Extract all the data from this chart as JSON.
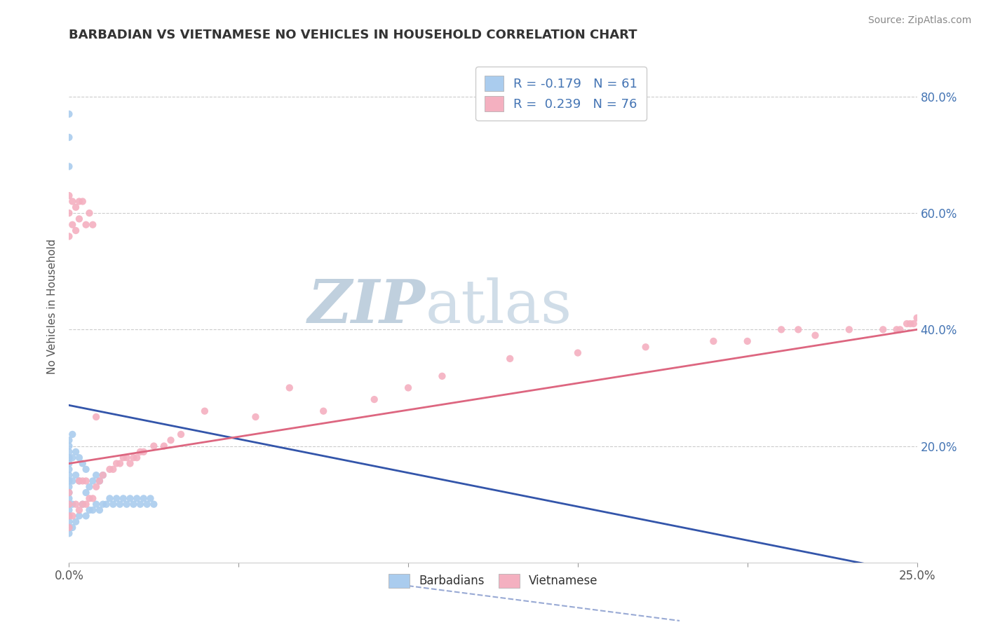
{
  "title": "BARBADIAN VS VIETNAMESE NO VEHICLES IN HOUSEHOLD CORRELATION CHART",
  "source": "Source: ZipAtlas.com",
  "ylabel": "No Vehicles in Household",
  "xlim": [
    0.0,
    0.25
  ],
  "ylim": [
    0.0,
    0.88
  ],
  "xtick_values": [
    0.0,
    0.05,
    0.1,
    0.15,
    0.2,
    0.25
  ],
  "xtick_labels_show": [
    "0.0%",
    "",
    "",
    "",
    "",
    "25.0%"
  ],
  "ytick_values": [
    0.2,
    0.4,
    0.6,
    0.8
  ],
  "ytick_labels": [
    "20.0%",
    "40.0%",
    "60.0%",
    "80.0%"
  ],
  "background_color": "#ffffff",
  "grid_color": "#cccccc",
  "title_color": "#333333",
  "watermark_text1": "ZIP",
  "watermark_text2": "atlas",
  "watermark_color": "#c8d8e8",
  "blue_scatter_color": "#aaccee",
  "pink_scatter_color": "#f4b0c0",
  "blue_line_color": "#3355aa",
  "pink_line_color": "#dd6680",
  "tick_label_color": "#4575b4",
  "blue_points_x": [
    0.0,
    0.0,
    0.0,
    0.0,
    0.0,
    0.0,
    0.0,
    0.0,
    0.0,
    0.0,
    0.0,
    0.0,
    0.0,
    0.0,
    0.0,
    0.0,
    0.0,
    0.0,
    0.0,
    0.0,
    0.001,
    0.001,
    0.001,
    0.001,
    0.001,
    0.002,
    0.002,
    0.002,
    0.003,
    0.003,
    0.003,
    0.004,
    0.004,
    0.005,
    0.005,
    0.005,
    0.006,
    0.006,
    0.007,
    0.007,
    0.008,
    0.008,
    0.009,
    0.009,
    0.01,
    0.01,
    0.011,
    0.012,
    0.013,
    0.014,
    0.015,
    0.016,
    0.017,
    0.018,
    0.019,
    0.02,
    0.021,
    0.022,
    0.023,
    0.024,
    0.025
  ],
  "blue_points_y": [
    0.05,
    0.06,
    0.07,
    0.08,
    0.09,
    0.1,
    0.11,
    0.12,
    0.13,
    0.14,
    0.15,
    0.16,
    0.17,
    0.18,
    0.19,
    0.2,
    0.21,
    0.68,
    0.73,
    0.77,
    0.06,
    0.1,
    0.14,
    0.18,
    0.22,
    0.07,
    0.15,
    0.19,
    0.08,
    0.14,
    0.18,
    0.1,
    0.17,
    0.08,
    0.12,
    0.16,
    0.09,
    0.13,
    0.09,
    0.14,
    0.1,
    0.15,
    0.09,
    0.14,
    0.1,
    0.15,
    0.1,
    0.11,
    0.1,
    0.11,
    0.1,
    0.11,
    0.1,
    0.11,
    0.1,
    0.11,
    0.1,
    0.11,
    0.1,
    0.11,
    0.1
  ],
  "pink_points_x": [
    0.0,
    0.0,
    0.0,
    0.0,
    0.0,
    0.0,
    0.0,
    0.001,
    0.001,
    0.001,
    0.002,
    0.002,
    0.002,
    0.003,
    0.003,
    0.003,
    0.003,
    0.004,
    0.004,
    0.004,
    0.005,
    0.005,
    0.005,
    0.006,
    0.006,
    0.007,
    0.007,
    0.008,
    0.008,
    0.009,
    0.01,
    0.012,
    0.013,
    0.014,
    0.015,
    0.016,
    0.017,
    0.018,
    0.019,
    0.02,
    0.021,
    0.022,
    0.025,
    0.028,
    0.03,
    0.033,
    0.04,
    0.055,
    0.065,
    0.075,
    0.09,
    0.1,
    0.11,
    0.13,
    0.15,
    0.17,
    0.19,
    0.2,
    0.21,
    0.215,
    0.22,
    0.23,
    0.24,
    0.245,
    0.247,
    0.249,
    0.25,
    0.248,
    0.244
  ],
  "pink_points_y": [
    0.06,
    0.08,
    0.1,
    0.12,
    0.56,
    0.6,
    0.63,
    0.08,
    0.58,
    0.62,
    0.1,
    0.57,
    0.61,
    0.09,
    0.14,
    0.59,
    0.62,
    0.1,
    0.14,
    0.62,
    0.1,
    0.14,
    0.58,
    0.11,
    0.6,
    0.11,
    0.58,
    0.13,
    0.25,
    0.14,
    0.15,
    0.16,
    0.16,
    0.17,
    0.17,
    0.18,
    0.18,
    0.17,
    0.18,
    0.18,
    0.19,
    0.19,
    0.2,
    0.2,
    0.21,
    0.22,
    0.26,
    0.25,
    0.3,
    0.26,
    0.28,
    0.3,
    0.32,
    0.35,
    0.36,
    0.37,
    0.38,
    0.38,
    0.4,
    0.4,
    0.39,
    0.4,
    0.4,
    0.4,
    0.41,
    0.41,
    0.42,
    0.41,
    0.4
  ]
}
